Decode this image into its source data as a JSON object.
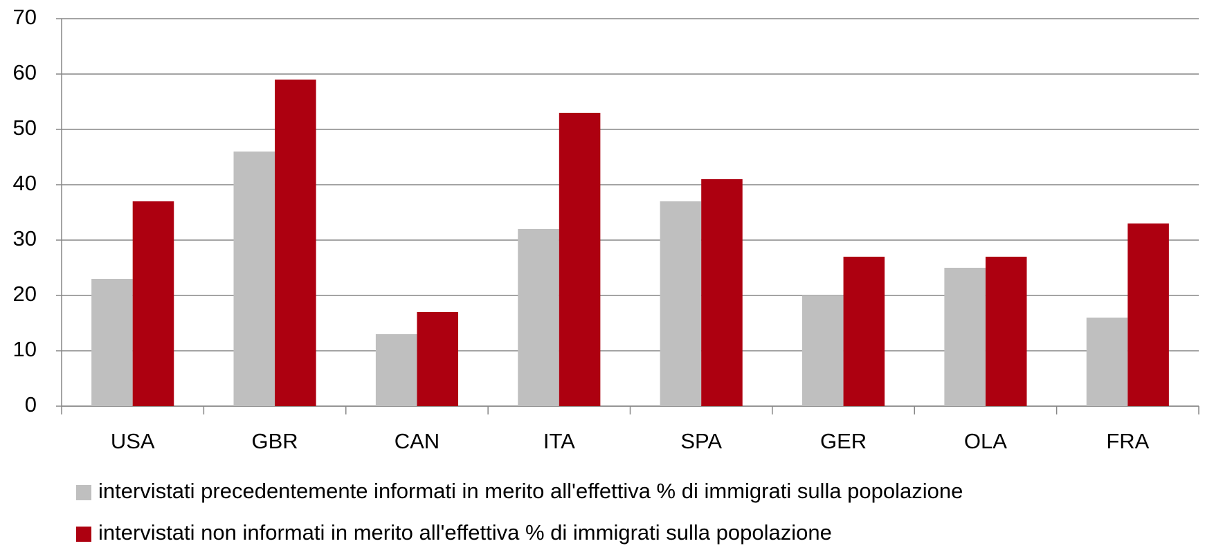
{
  "chart_data": {
    "type": "bar",
    "categories": [
      "USA",
      "GBR",
      "CAN",
      "ITA",
      "SPA",
      "GER",
      "OLA",
      "FRA"
    ],
    "series": [
      {
        "name": "intervistati precedentemente informati in merito all'effettiva % di immigrati sulla popolazione",
        "color": "#bfbfbf",
        "values": [
          23,
          46,
          13,
          32,
          37,
          20,
          25,
          16
        ]
      },
      {
        "name": "intervistati non informati in merito all'effettiva % di immigrati sulla popolazione",
        "color": "#ad0010",
        "values": [
          37,
          59,
          17,
          53,
          41,
          27,
          27,
          33
        ]
      }
    ],
    "ylim": [
      0,
      70
    ],
    "yticks": [
      0,
      10,
      20,
      30,
      40,
      50,
      60,
      70
    ],
    "grid": true,
    "legend": "bottom"
  }
}
